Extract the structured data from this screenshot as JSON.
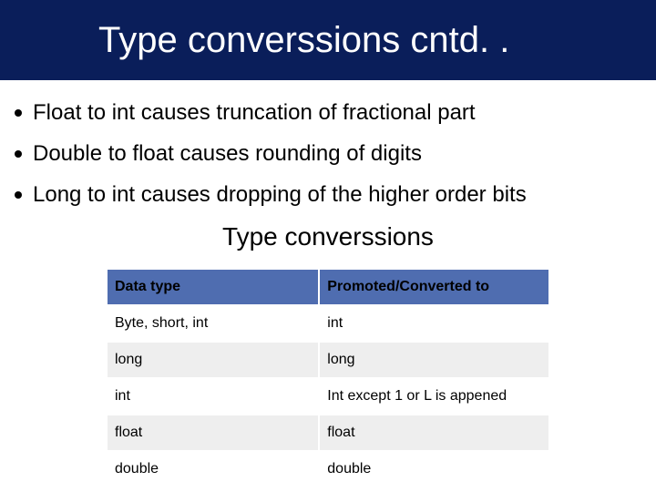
{
  "title": "Type converssions cntd. .",
  "bullets": [
    "Float to int causes truncation of fractional part",
    "Double to float causes rounding of digits",
    "Long to int causes dropping of the higher order bits"
  ],
  "subtitle": "Type converssions",
  "table": {
    "columns": [
      "Data type",
      "Promoted/Converted to"
    ],
    "rows": [
      [
        "Byte, short, int",
        "int"
      ],
      [
        "long",
        "long"
      ],
      [
        "int",
        "Int except 1 or L is appened"
      ],
      [
        "float",
        "float"
      ],
      [
        "double",
        "double"
      ]
    ],
    "header_bg": "#4f6db0",
    "row_bg": "#ffffff",
    "row_alt_bg": "#eeeeee",
    "border_color": "#ffffff",
    "font_size": 16,
    "col_widths": [
      "48%",
      "52%"
    ]
  },
  "colors": {
    "title_bar_bg": "#0a1e5a",
    "title_text": "#ffffff",
    "body_text": "#000000",
    "background": "#ffffff"
  },
  "typography": {
    "title_fontsize": 40,
    "bullet_fontsize": 24,
    "subtitle_fontsize": 28
  }
}
